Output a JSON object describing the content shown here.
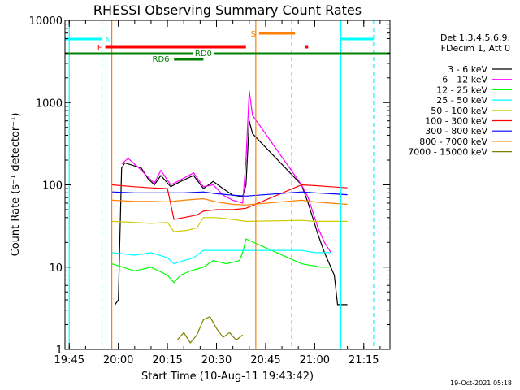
{
  "chart_data": {
    "type": "line",
    "title": "RHESSI Observing Summary Count Rates",
    "xlabel": "Start Time (10-Aug-11 19:43:42)",
    "ylabel": "Count Rate (s⁻¹ detector⁻¹)",
    "y_scale": "log",
    "ylim": [
      1,
      10000
    ],
    "xlim": [
      "19:43:42",
      "21:23:00"
    ],
    "x_ticks": [
      "19:45",
      "20:00",
      "20:15",
      "20:30",
      "20:45",
      "21:00",
      "21:15"
    ],
    "y_ticks": [
      "1",
      "10",
      "100",
      "1000",
      "10000"
    ],
    "legend_header": [
      "Det 1,3,4,5,6,9,",
      "FDecim 1, Att 0"
    ],
    "legend_position": "right",
    "footer_date": "19-Oct-2021 05:18",
    "series": [
      {
        "name": "3 - 6 keV",
        "color": "#000000",
        "points": [
          [
            "19:59",
            3.5
          ],
          [
            "20:00",
            4.0
          ],
          [
            "20:01",
            160
          ],
          [
            "20:02",
            185
          ],
          [
            "20:04",
            175
          ],
          [
            "20:07",
            160
          ],
          [
            "20:09",
            120
          ],
          [
            "20:11",
            100
          ],
          [
            "20:13",
            130
          ],
          [
            "20:16",
            95
          ],
          [
            "20:19",
            110
          ],
          [
            "20:23",
            130
          ],
          [
            "20:26",
            90
          ],
          [
            "20:29",
            110
          ],
          [
            "20:32",
            90
          ],
          [
            "20:35",
            75
          ],
          [
            "20:38",
            72
          ],
          [
            "20:39",
            100
          ],
          [
            "20:40",
            600
          ],
          [
            "20:41",
            420
          ],
          [
            "20:56",
            100
          ],
          [
            "20:58",
            60
          ],
          [
            "21:01",
            25
          ],
          [
            "21:03",
            15
          ],
          [
            "21:06",
            8
          ],
          [
            "21:07",
            3.5
          ],
          [
            "21:10",
            3.5
          ]
        ]
      },
      {
        "name": "6 - 12 keV",
        "color": "#ff00ff",
        "points": [
          [
            "20:01",
            180
          ],
          [
            "20:03",
            210
          ],
          [
            "20:06",
            165
          ],
          [
            "20:09",
            125
          ],
          [
            "20:11",
            105
          ],
          [
            "20:13",
            150
          ],
          [
            "20:16",
            100
          ],
          [
            "20:19",
            115
          ],
          [
            "20:23",
            140
          ],
          [
            "20:26",
            95
          ],
          [
            "20:29",
            100
          ],
          [
            "20:32",
            75
          ],
          [
            "20:35",
            65
          ],
          [
            "20:38",
            60
          ],
          [
            "20:39",
            200
          ],
          [
            "20:40",
            1400
          ],
          [
            "20:41",
            700
          ],
          [
            "20:56",
            100
          ],
          [
            "20:58",
            70
          ],
          [
            "21:01",
            30
          ],
          [
            "21:03",
            20
          ],
          [
            "21:05",
            15
          ]
        ]
      },
      {
        "name": "12 - 25 keV",
        "color": "#00ff00",
        "points": [
          [
            "19:58",
            11
          ],
          [
            "20:05",
            9
          ],
          [
            "20:10",
            10
          ],
          [
            "20:15",
            8
          ],
          [
            "20:17",
            6.5
          ],
          [
            "20:19",
            8
          ],
          [
            "20:22",
            9
          ],
          [
            "20:26",
            10
          ],
          [
            "20:29",
            12
          ],
          [
            "20:33",
            11
          ],
          [
            "20:37",
            12
          ],
          [
            "20:38",
            15
          ],
          [
            "20:39",
            22
          ],
          [
            "20:56",
            11
          ],
          [
            "21:02",
            10
          ],
          [
            "21:05",
            10
          ]
        ]
      },
      {
        "name": "25 - 50 keV",
        "color": "#00ffff",
        "points": [
          [
            "19:58",
            15
          ],
          [
            "20:05",
            14
          ],
          [
            "20:10",
            15
          ],
          [
            "20:15",
            13
          ],
          [
            "20:17",
            11
          ],
          [
            "20:20",
            12
          ],
          [
            "20:23",
            13
          ],
          [
            "20:26",
            16
          ],
          [
            "20:30",
            16
          ],
          [
            "20:35",
            16
          ],
          [
            "20:39",
            16
          ],
          [
            "20:56",
            16
          ],
          [
            "21:00",
            15
          ],
          [
            "21:05",
            15
          ]
        ]
      },
      {
        "name": "50 - 100 keV",
        "color": "#cccc00",
        "points": [
          [
            "19:58",
            36
          ],
          [
            "20:05",
            35
          ],
          [
            "20:10",
            34
          ],
          [
            "20:15",
            35
          ],
          [
            "20:17",
            27
          ],
          [
            "20:21",
            28
          ],
          [
            "20:24",
            30
          ],
          [
            "20:26",
            40
          ],
          [
            "20:30",
            40
          ],
          [
            "20:35",
            38
          ],
          [
            "20:39",
            36
          ],
          [
            "20:56",
            37
          ],
          [
            "21:00",
            36
          ],
          [
            "21:05",
            36
          ],
          [
            "21:10",
            36
          ]
        ]
      },
      {
        "name": "100 - 300 keV",
        "color": "#ff0000",
        "points": [
          [
            "19:58",
            100
          ],
          [
            "20:05",
            95
          ],
          [
            "20:10",
            92
          ],
          [
            "20:15",
            90
          ],
          [
            "20:17",
            38
          ],
          [
            "20:20",
            40
          ],
          [
            "20:24",
            43
          ],
          [
            "20:26",
            48
          ],
          [
            "20:30",
            50
          ],
          [
            "20:35",
            50
          ],
          [
            "20:39",
            52
          ],
          [
            "20:56",
            100
          ],
          [
            "21:00",
            98
          ],
          [
            "21:05",
            95
          ],
          [
            "21:10",
            92
          ]
        ]
      },
      {
        "name": "300 - 800 keV",
        "color": "#0000ff",
        "points": [
          [
            "19:58",
            82
          ],
          [
            "20:05",
            80
          ],
          [
            "20:10",
            80
          ],
          [
            "20:15",
            80
          ],
          [
            "20:20",
            80
          ],
          [
            "20:26",
            82
          ],
          [
            "20:30",
            78
          ],
          [
            "20:35",
            75
          ],
          [
            "20:39",
            73
          ],
          [
            "20:56",
            82
          ],
          [
            "21:00",
            80
          ],
          [
            "21:05",
            78
          ],
          [
            "21:10",
            76
          ]
        ]
      },
      {
        "name": "800 - 7000 keV",
        "color": "#ff8000",
        "points": [
          [
            "19:58",
            65
          ],
          [
            "20:05",
            63
          ],
          [
            "20:10",
            63
          ],
          [
            "20:15",
            62
          ],
          [
            "20:20",
            65
          ],
          [
            "20:26",
            68
          ],
          [
            "20:30",
            62
          ],
          [
            "20:35",
            58
          ],
          [
            "20:39",
            57
          ],
          [
            "20:56",
            65
          ],
          [
            "21:00",
            62
          ],
          [
            "21:05",
            60
          ],
          [
            "21:10",
            58
          ]
        ]
      },
      {
        "name": "7000 - 15000 keV",
        "color": "#808000",
        "points": [
          [
            "20:18",
            1.3
          ],
          [
            "20:20",
            1.6
          ],
          [
            "20:22",
            1.2
          ],
          [
            "20:24",
            1.5
          ],
          [
            "20:26",
            2.3
          ],
          [
            "20:28",
            2.5
          ],
          [
            "20:30",
            1.8
          ],
          [
            "20:32",
            1.4
          ],
          [
            "20:34",
            1.6
          ],
          [
            "20:36",
            1.3
          ],
          [
            "20:38",
            1.5
          ]
        ]
      }
    ],
    "flags": [
      {
        "label": "N",
        "color": "#00ffff",
        "start": "19:43:42",
        "end": "19:55",
        "level": "upper",
        "label_at": "19:56",
        "label_side": "after"
      },
      {
        "label": "",
        "color": "#00ffff",
        "start": "21:08",
        "end": "21:18",
        "level": "upper"
      },
      {
        "label": "S",
        "color": "#ff8000",
        "start": "20:43",
        "end": "20:54",
        "level": "top",
        "label_at": "20:42",
        "label_side": "before"
      },
      {
        "label": "F",
        "color": "#ff0000",
        "start": "19:56",
        "end": "20:39",
        "level": "middle",
        "label_at": "19:55",
        "label_side": "before"
      },
      {
        "label": "",
        "color": "#ff0000",
        "start": "20:57",
        "end": "20:58",
        "level": "middle"
      },
      {
        "label": "RD0",
        "color": "#008000",
        "start": "19:43:42",
        "end": "21:23",
        "level": "lower",
        "label_at": "20:26",
        "label_side": "center"
      },
      {
        "label": "RD6",
        "color": "#008000",
        "start": "20:17",
        "end": "20:26",
        "level": "bottom",
        "label_at": "20:13",
        "label_side": "center"
      }
    ],
    "markers": [
      {
        "time": "19:45",
        "color": "#00ffff",
        "style": "solid"
      },
      {
        "time": "19:55",
        "color": "#00ffff",
        "style": "dashed"
      },
      {
        "time": "19:58",
        "color": "#ff8000",
        "style": "solid"
      },
      {
        "time": "20:42",
        "color": "#ff8000",
        "style": "solid"
      },
      {
        "time": "20:53",
        "color": "#ff8000",
        "style": "dashed"
      },
      {
        "time": "21:08",
        "color": "#00ffff",
        "style": "solid"
      },
      {
        "time": "21:18",
        "color": "#00ffff",
        "style": "dashed"
      }
    ]
  }
}
